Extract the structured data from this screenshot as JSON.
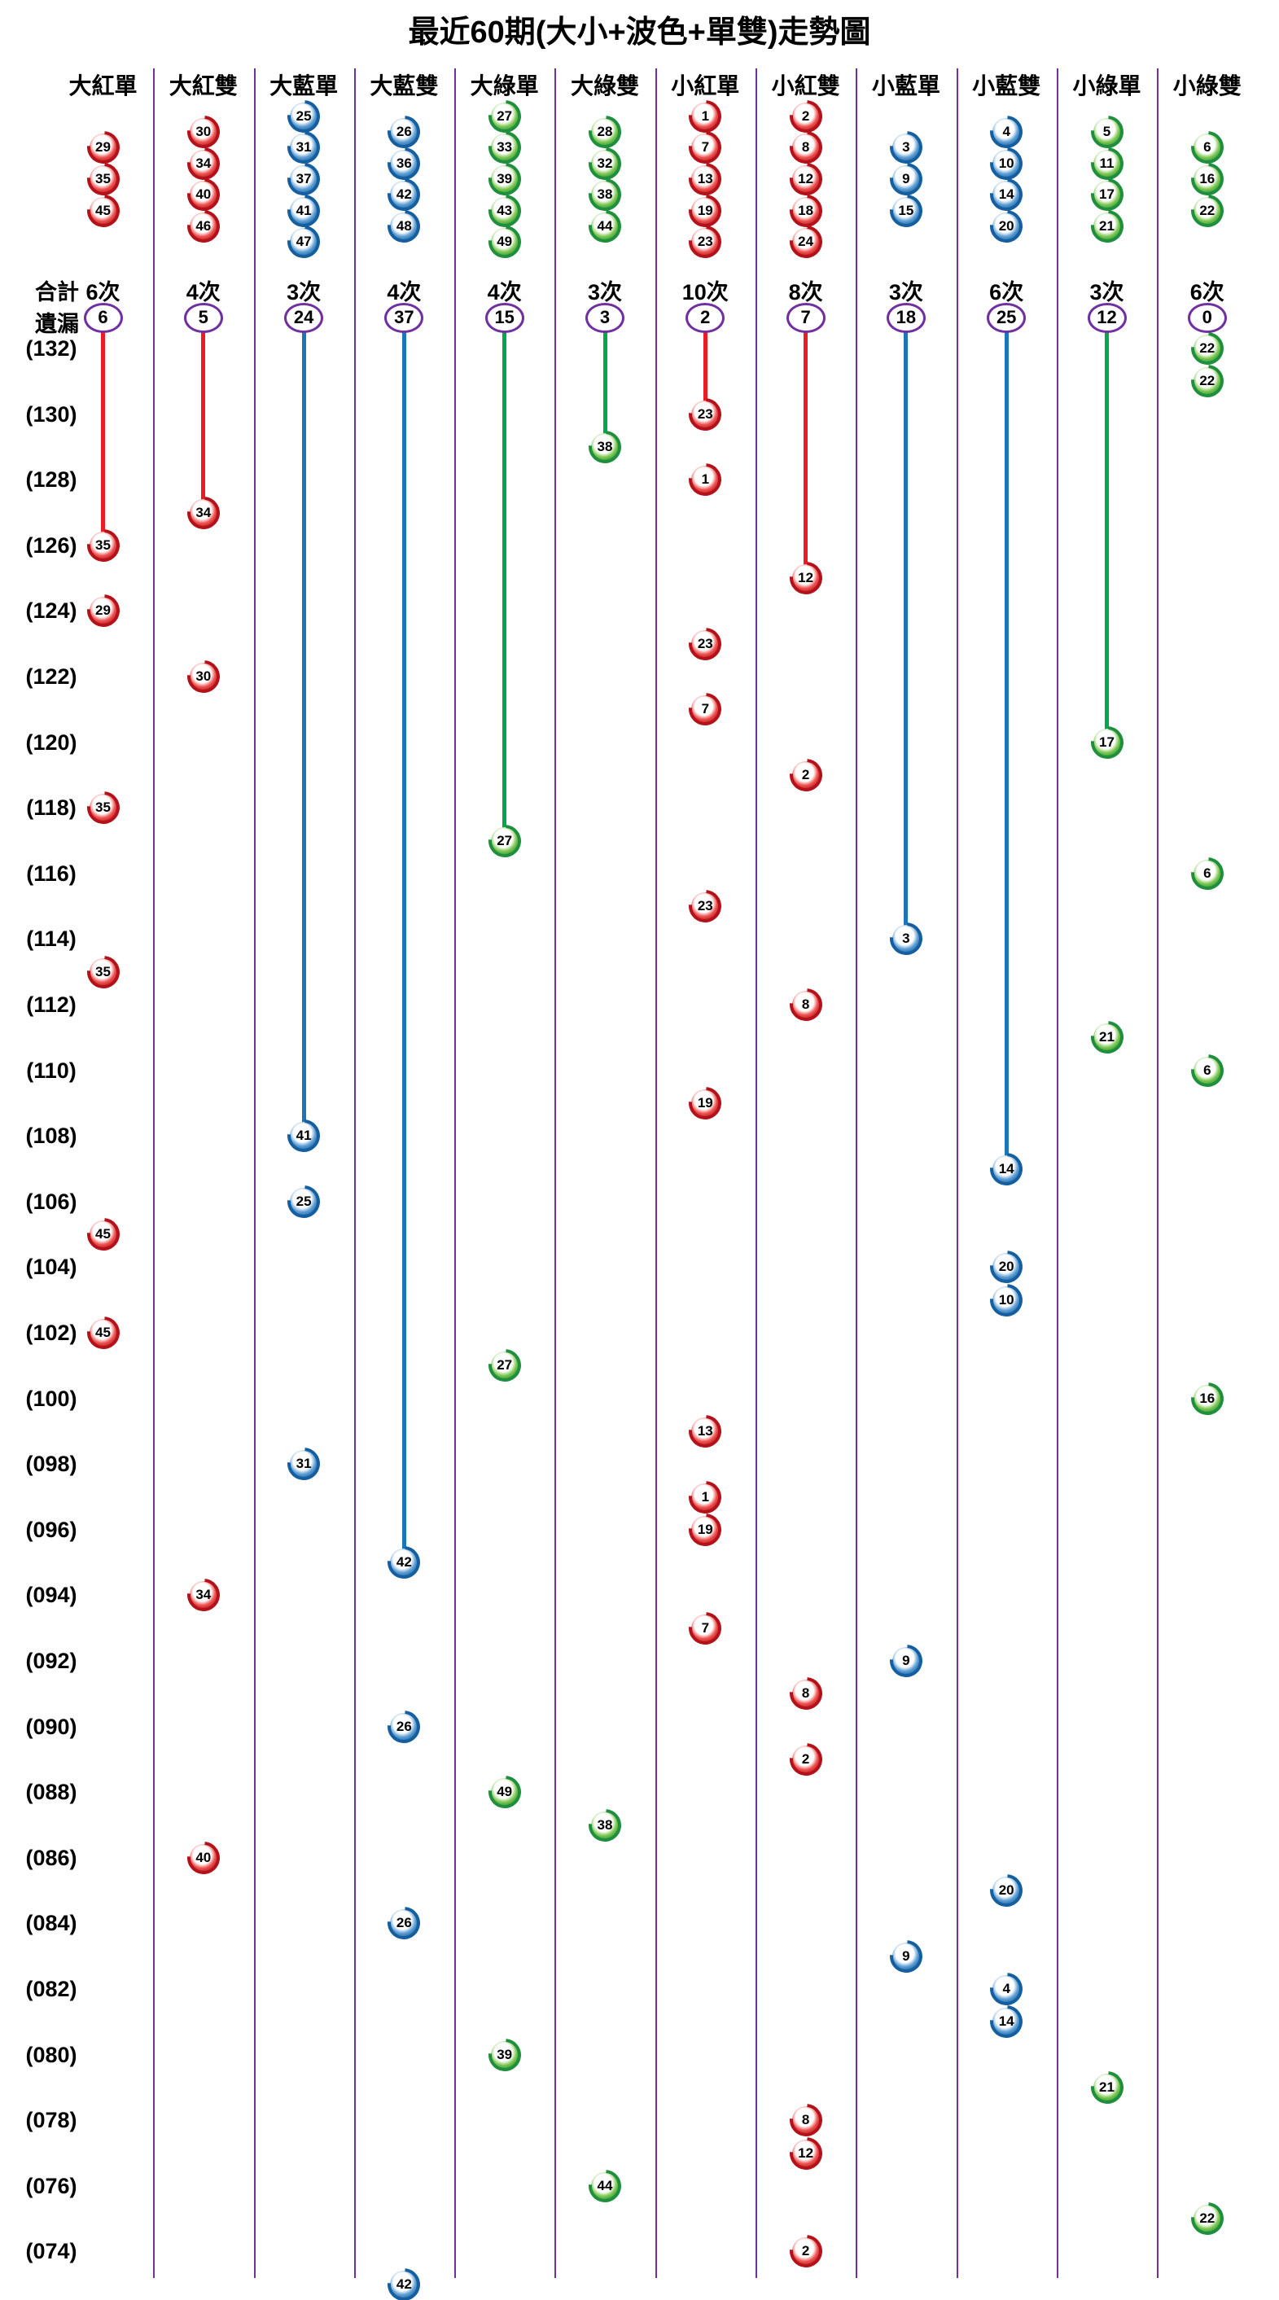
{
  "legend": {
    "total_label": "合計",
    "miss_label": "遺漏",
    "times_suffix": "次"
  },
  "colors": {
    "red": "#ed1c24",
    "blue": "#1b75bb",
    "green": "#00a651",
    "purple": "#7030a0",
    "ball": {
      "red": {
        "dark": "#b3121b",
        "light": "#ef5350"
      },
      "blue": {
        "dark": "#155fa0",
        "light": "#5e9fd4"
      },
      "green": {
        "dark": "#1f8f3e",
        "light": "#7ec850"
      }
    }
  },
  "chart_data": {
    "type": "scatter",
    "title": "最近60期(大小+波色+單雙)走勢圖",
    "y_axis": {
      "first_period": 132,
      "last_period": 73,
      "labels": [
        "(132)",
        "(130)",
        "(128)",
        "(126)",
        "(124)",
        "(122)",
        "(120)",
        "(118)",
        "(116)",
        "(114)",
        "(112)",
        "(110)",
        "(108)",
        "(106)",
        "(104)",
        "(102)",
        "(100)",
        "(098)",
        "(096)",
        "(094)",
        "(092)",
        "(090)",
        "(088)",
        "(086)",
        "(084)",
        "(082)",
        "(080)",
        "(078)",
        "(076)",
        "(074)"
      ]
    },
    "columns": [
      {
        "name": "大紅單",
        "color": "red",
        "header_balls": [
          29,
          35,
          45
        ],
        "total": "6",
        "miss": "6",
        "line_end": 126,
        "balls": [
          {
            "n": 35,
            "p": 126
          },
          {
            "n": 29,
            "p": 124
          },
          {
            "n": 35,
            "p": 118
          },
          {
            "n": 35,
            "p": 113
          },
          {
            "n": 45,
            "p": 105
          },
          {
            "n": 45,
            "p": 102
          }
        ]
      },
      {
        "name": "大紅雙",
        "color": "red",
        "header_balls": [
          30,
          34,
          40,
          46
        ],
        "total": "4",
        "miss": "5",
        "line_end": 127,
        "balls": [
          {
            "n": 34,
            "p": 127
          },
          {
            "n": 30,
            "p": 122
          },
          {
            "n": 34,
            "p": 94
          },
          {
            "n": 40,
            "p": 86
          }
        ]
      },
      {
        "name": "大藍單",
        "color": "blue",
        "header_balls": [
          25,
          31,
          37,
          41,
          47
        ],
        "total": "3",
        "miss": "24",
        "line_end": 108,
        "balls": [
          {
            "n": 41,
            "p": 108
          },
          {
            "n": 25,
            "p": 106
          },
          {
            "n": 31,
            "p": 98
          }
        ]
      },
      {
        "name": "大藍雙",
        "color": "blue",
        "header_balls": [
          26,
          36,
          42,
          48
        ],
        "total": "4",
        "miss": "37",
        "line_end": 95,
        "balls": [
          {
            "n": 42,
            "p": 95
          },
          {
            "n": 26,
            "p": 90
          },
          {
            "n": 26,
            "p": 84
          },
          {
            "n": 42,
            "p": 73
          }
        ]
      },
      {
        "name": "大綠單",
        "color": "green",
        "header_balls": [
          27,
          33,
          39,
          43,
          49
        ],
        "total": "4",
        "miss": "15",
        "line_end": 117,
        "balls": [
          {
            "n": 27,
            "p": 117
          },
          {
            "n": 27,
            "p": 101
          },
          {
            "n": 49,
            "p": 88
          },
          {
            "n": 39,
            "p": 80
          }
        ]
      },
      {
        "name": "大綠雙",
        "color": "green",
        "header_balls": [
          28,
          32,
          38,
          44
        ],
        "total": "3",
        "miss": "3",
        "line_end": 129,
        "balls": [
          {
            "n": 38,
            "p": 129
          },
          {
            "n": 38,
            "p": 87
          },
          {
            "n": 44,
            "p": 76
          }
        ]
      },
      {
        "name": "小紅單",
        "color": "red",
        "header_balls": [
          1,
          7,
          13,
          19,
          23
        ],
        "total": "10",
        "miss": "2",
        "line_end": 130,
        "balls": [
          {
            "n": 23,
            "p": 130
          },
          {
            "n": 1,
            "p": 128
          },
          {
            "n": 23,
            "p": 123
          },
          {
            "n": 7,
            "p": 121
          },
          {
            "n": 23,
            "p": 115
          },
          {
            "n": 19,
            "p": 109
          },
          {
            "n": 13,
            "p": 99
          },
          {
            "n": 1,
            "p": 97
          },
          {
            "n": 19,
            "p": 96
          },
          {
            "n": 7,
            "p": 93
          }
        ]
      },
      {
        "name": "小紅雙",
        "color": "red",
        "header_balls": [
          2,
          8,
          12,
          18,
          24
        ],
        "total": "8",
        "miss": "7",
        "line_end": 125,
        "balls": [
          {
            "n": 12,
            "p": 125
          },
          {
            "n": 2,
            "p": 119
          },
          {
            "n": 8,
            "p": 112
          },
          {
            "n": 8,
            "p": 91
          },
          {
            "n": 2,
            "p": 89
          },
          {
            "n": 8,
            "p": 78
          },
          {
            "n": 12,
            "p": 77
          },
          {
            "n": 2,
            "p": 74
          }
        ]
      },
      {
        "name": "小藍單",
        "color": "blue",
        "header_balls": [
          3,
          9,
          15
        ],
        "total": "3",
        "miss": "18",
        "line_end": 114,
        "balls": [
          {
            "n": 3,
            "p": 114
          },
          {
            "n": 9,
            "p": 92
          },
          {
            "n": 9,
            "p": 83
          }
        ]
      },
      {
        "name": "小藍雙",
        "color": "blue",
        "header_balls": [
          4,
          10,
          14,
          20
        ],
        "total": "6",
        "miss": "25",
        "line_end": 107,
        "balls": [
          {
            "n": 14,
            "p": 107
          },
          {
            "n": 20,
            "p": 104
          },
          {
            "n": 10,
            "p": 103
          },
          {
            "n": 20,
            "p": 85
          },
          {
            "n": 4,
            "p": 82
          },
          {
            "n": 14,
            "p": 81
          }
        ]
      },
      {
        "name": "小綠單",
        "color": "green",
        "header_balls": [
          5,
          11,
          17,
          21
        ],
        "total": "3",
        "miss": "12",
        "line_end": 120,
        "balls": [
          {
            "n": 17,
            "p": 120
          },
          {
            "n": 21,
            "p": 111
          },
          {
            "n": 21,
            "p": 79
          }
        ]
      },
      {
        "name": "小綠雙",
        "color": "green",
        "header_balls": [
          6,
          16,
          22
        ],
        "total": "6",
        "miss": "0",
        "line_end": null,
        "balls": [
          {
            "n": 22,
            "p": 132
          },
          {
            "n": 22,
            "p": 131
          },
          {
            "n": 6,
            "p": 116
          },
          {
            "n": 6,
            "p": 110
          },
          {
            "n": 16,
            "p": 100
          },
          {
            "n": 22,
            "p": 75
          }
        ]
      }
    ]
  }
}
